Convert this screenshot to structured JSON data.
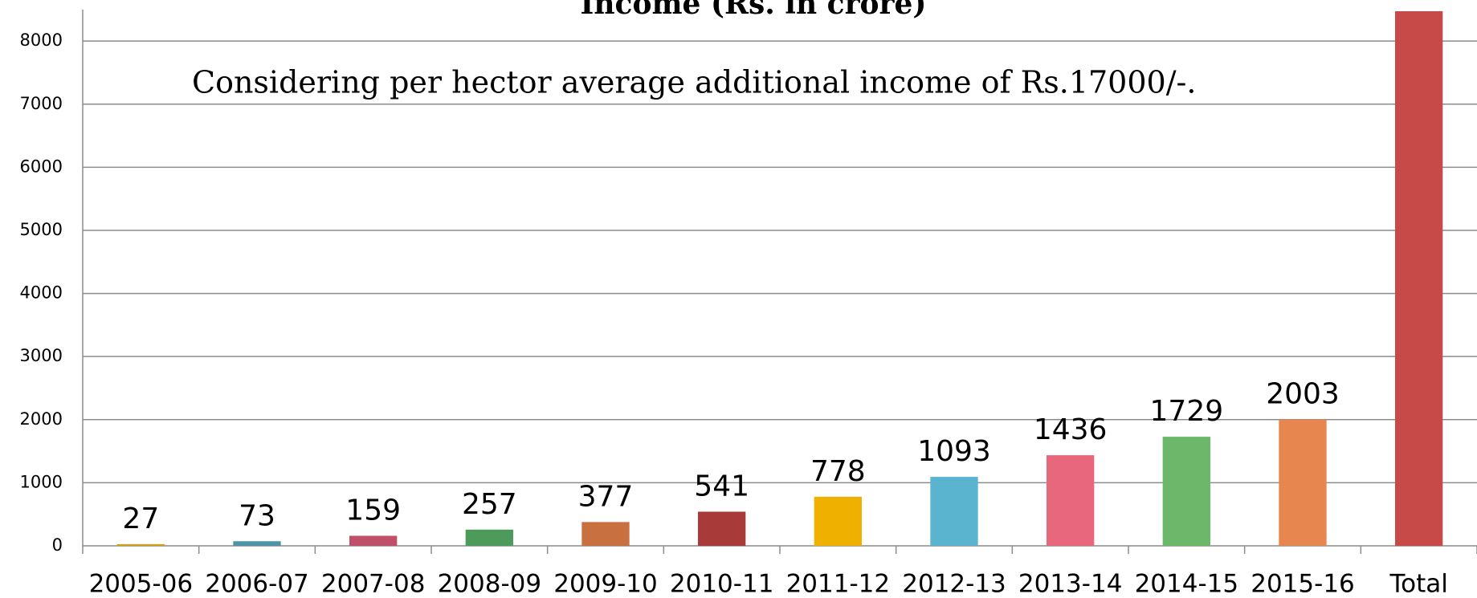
{
  "chart_data": {
    "type": "bar",
    "title": "Income (Rs. in crore)",
    "annotation": "Considering per hector average additional income of Rs.17000/-.",
    "categories": [
      "2005-06",
      "2006-07",
      "2007-08",
      "2008-09",
      "2009-10",
      "2010-11",
      "2011-12",
      "2012-13",
      "2013-14",
      "2014-15",
      "2015-16",
      "Total"
    ],
    "values": [
      27,
      73,
      159,
      257,
      377,
      541,
      778,
      1093,
      1436,
      1729,
      2003,
      8473
    ],
    "colors": [
      "#d4a017",
      "#4f93a8",
      "#c0506a",
      "#4e9a5a",
      "#c87040",
      "#a83a3a",
      "#f0b000",
      "#5ab4d0",
      "#e8677c",
      "#6bb86a",
      "#e8864f",
      "#c84a48"
    ],
    "ylim": [
      0,
      8600
    ],
    "yticks": [
      0,
      1000,
      2000,
      3000,
      4000,
      5000,
      6000,
      7000,
      8000
    ],
    "grid": true
  }
}
